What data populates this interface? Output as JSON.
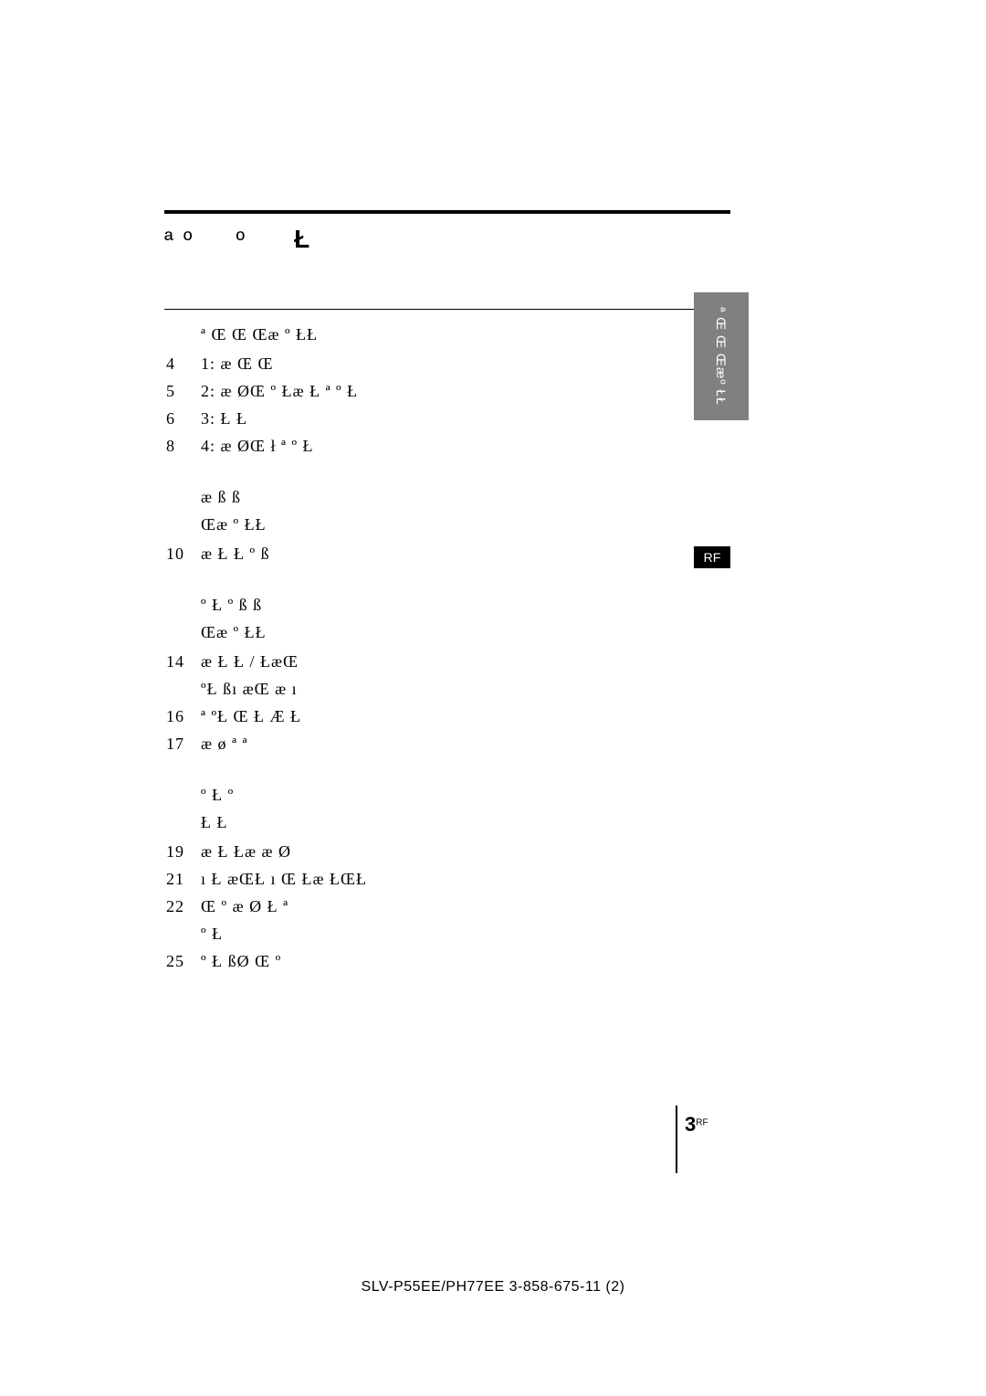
{
  "title": {
    "part_a": "ª º",
    "part_b": "º",
    "part_c": "Ł"
  },
  "sections": [
    {
      "head_lines": [
        "ª   Œ  Œ  Œæ º    ŁŁ"
      ],
      "items": [
        {
          "pn": "4",
          "text": "1:   æ  Œ  Œ"
        },
        {
          "pn": "5",
          "text": "2:  æ  ØŒ  º    Łæ   Ł   ª     º Ł"
        },
        {
          "pn": "6",
          "text": "3:  Ł Ł"
        },
        {
          "pn": "8",
          "text": "4:  æ  ØŒ   ł ª   º Ł"
        }
      ]
    },
    {
      "head_lines": [
        "æ     ß       ß",
        "Œæ º    ŁŁ"
      ],
      "items": [
        {
          "pn": "10",
          "text": "æ  Ł    Ł º  ß"
        }
      ]
    },
    {
      "head_lines": [
        " º Ł  º   ß       ß",
        "Œæ º    ŁŁ"
      ],
      "items": [
        {
          "pn": "14",
          "text": "æ  Ł    Ł / ŁæŒ\n ºŁ  ßı æŒ   æ  ı"
        },
        {
          "pn": "16",
          "text": "ª ºŁ  Œ  Ł  Æ    Ł"
        },
        {
          "pn": "17",
          "text": "  æ    ø    ª ª"
        }
      ]
    },
    {
      "head_lines": [
        " º Ł  º",
        "Ł       Ł"
      ],
      "items": [
        {
          "pn": "19",
          "text": "æ    Ł  Łæ    æ  Ø"
        },
        {
          "pn": "21",
          "text": " ı Ł  æŒŁ  ı  Œ   Łæ ŁŒŁ"
        },
        {
          "pn": "22",
          "text": "Œ     º   æ  Ø Ł   ª\n  º Ł"
        },
        {
          "pn": "25",
          "text": "º    Ł  ßØ  Œ     º"
        }
      ]
    }
  ],
  "side_tab_vertical": "ª  Œ Œ\nŒæº  ŁŁ",
  "side_tab_rf": "RF",
  "page_number": {
    "num": "3",
    "sup": "RF"
  },
  "footer": "SLV-P55EE/PH77EE     3-858-675-11 (2)",
  "colors": {
    "text": "#000000",
    "background": "#ffffff",
    "side_tab_bg": "#808080",
    "side_tab_text": "#ffffff",
    "rf_tab_bg": "#000000"
  },
  "typography": {
    "title_fontsize": 26,
    "body_fontsize": 18,
    "footer_fontsize": 16,
    "line_height": 30
  }
}
